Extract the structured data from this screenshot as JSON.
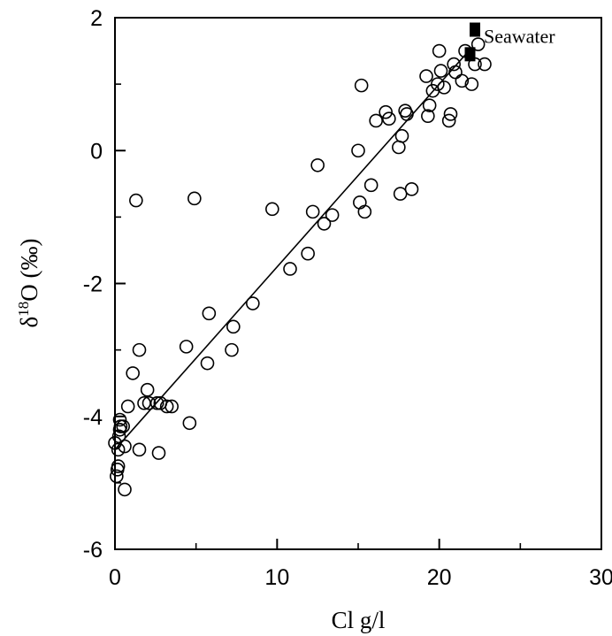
{
  "chart_data": {
    "type": "scatter",
    "title": "",
    "xlabel": "Cl g/l",
    "ylabel": "δ18O (‰)",
    "ylabel_parts": {
      "delta": "δ",
      "mass": "18",
      "rest": "O (‰)"
    },
    "xlim": [
      0,
      30
    ],
    "ylim": [
      -6,
      2
    ],
    "x_ticks": [
      0,
      10,
      20,
      30
    ],
    "y_ticks": [
      -6,
      -4,
      -2,
      0,
      2
    ],
    "grid": false,
    "legend": "none",
    "series": [
      {
        "marker": "open-circle",
        "points": [
          [
            0.0,
            -4.4
          ],
          [
            0.1,
            -4.9
          ],
          [
            0.15,
            -4.8
          ],
          [
            0.2,
            -4.75
          ],
          [
            0.2,
            -4.5
          ],
          [
            0.25,
            -4.3
          ],
          [
            0.3,
            -4.2
          ],
          [
            0.35,
            -4.15
          ],
          [
            0.3,
            -4.05
          ],
          [
            0.5,
            -4.15
          ],
          [
            0.6,
            -4.45
          ],
          [
            0.6,
            -5.1
          ],
          [
            0.8,
            -3.85
          ],
          [
            1.1,
            -3.35
          ],
          [
            1.3,
            -0.75
          ],
          [
            1.5,
            -3.0
          ],
          [
            1.5,
            -4.5
          ],
          [
            1.8,
            -3.8
          ],
          [
            2.0,
            -3.6
          ],
          [
            2.1,
            -3.8
          ],
          [
            2.6,
            -3.8
          ],
          [
            2.7,
            -4.55
          ],
          [
            2.8,
            -3.8
          ],
          [
            3.2,
            -3.85
          ],
          [
            3.5,
            -3.85
          ],
          [
            4.4,
            -2.95
          ],
          [
            4.6,
            -4.1
          ],
          [
            4.9,
            -0.72
          ],
          [
            5.7,
            -3.2
          ],
          [
            5.8,
            -2.45
          ],
          [
            7.2,
            -3.0
          ],
          [
            7.3,
            -2.65
          ],
          [
            8.5,
            -2.3
          ],
          [
            9.7,
            -0.88
          ],
          [
            10.8,
            -1.78
          ],
          [
            11.9,
            -1.55
          ],
          [
            12.2,
            -0.92
          ],
          [
            12.5,
            -0.22
          ],
          [
            12.9,
            -1.1
          ],
          [
            13.4,
            -0.97
          ],
          [
            15.0,
            0.0
          ],
          [
            15.1,
            -0.78
          ],
          [
            15.2,
            0.98
          ],
          [
            15.4,
            -0.92
          ],
          [
            15.8,
            -0.52
          ],
          [
            16.1,
            0.45
          ],
          [
            16.7,
            0.58
          ],
          [
            16.9,
            0.48
          ],
          [
            17.5,
            0.05
          ],
          [
            17.6,
            -0.65
          ],
          [
            17.7,
            0.22
          ],
          [
            17.9,
            0.6
          ],
          [
            18.0,
            0.55
          ],
          [
            18.3,
            -0.58
          ],
          [
            19.2,
            1.12
          ],
          [
            19.3,
            0.52
          ],
          [
            19.4,
            0.68
          ],
          [
            19.6,
            0.9
          ],
          [
            19.9,
            1.0
          ],
          [
            20.0,
            1.5
          ],
          [
            20.1,
            1.2
          ],
          [
            20.3,
            0.95
          ],
          [
            20.6,
            0.45
          ],
          [
            20.7,
            0.55
          ],
          [
            20.9,
            1.3
          ],
          [
            21.0,
            1.18
          ],
          [
            21.4,
            1.05
          ],
          [
            21.6,
            1.5
          ],
          [
            22.0,
            1.0
          ],
          [
            22.2,
            1.3
          ],
          [
            22.4,
            1.6
          ],
          [
            22.8,
            1.3
          ]
        ]
      }
    ],
    "trendline": {
      "x": [
        0,
        22
      ],
      "y": [
        -4.5,
        1.55
      ]
    },
    "reference_points": [
      {
        "label": "Seawater",
        "marker": "filled-square",
        "x": 22.2,
        "y": 1.82
      },
      {
        "marker": "filled-square",
        "x": 21.9,
        "y": 1.45
      }
    ]
  }
}
